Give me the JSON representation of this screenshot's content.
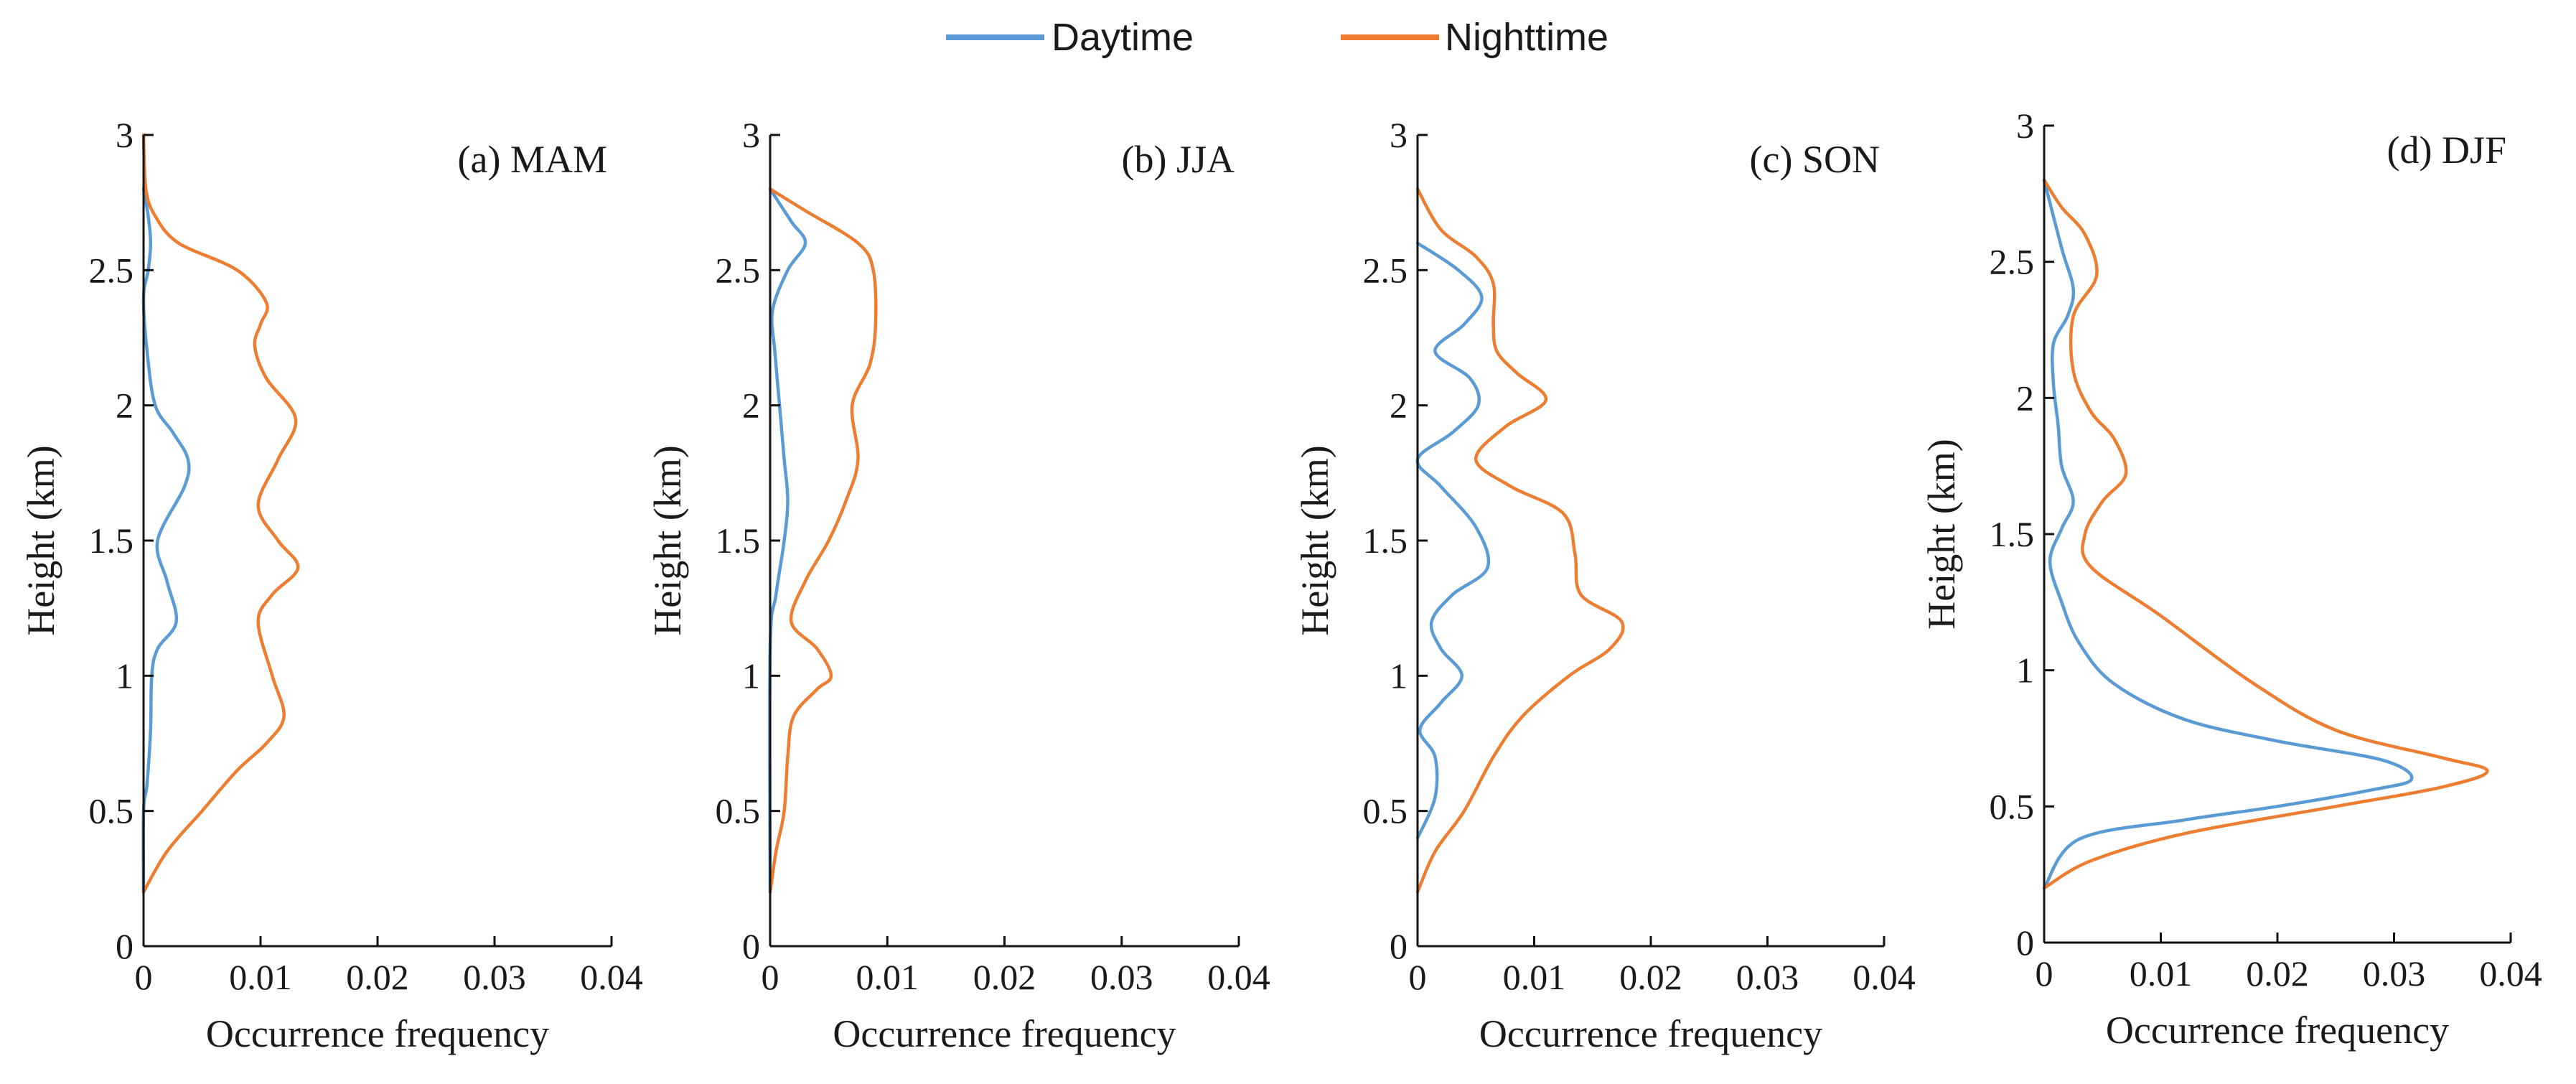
{
  "legend": {
    "items": [
      {
        "label": "Daytime",
        "color": "#5B9BD5"
      },
      {
        "label": "Nighttime",
        "color": "#ED7D31"
      }
    ]
  },
  "chart_data": [
    {
      "type": "line",
      "orientation": "vertical-profile",
      "title": "(a) MAM",
      "xlabel": "Occurrence frequency",
      "ylabel": "Height (km)",
      "xlim": [
        0,
        0.04
      ],
      "ylim": [
        0,
        3
      ],
      "xticks": [
        0,
        0.01,
        0.02,
        0.03,
        0.04
      ],
      "xtick_labels": [
        "0",
        "0.01",
        "0.02",
        "0.03",
        "0.04"
      ],
      "yticks": [
        0,
        0.5,
        1,
        1.5,
        2,
        2.5,
        3
      ],
      "ytick_labels": [
        "0",
        "0.5",
        "1",
        "1.5",
        "2",
        "2.5",
        "3"
      ],
      "series": [
        {
          "name": "Daytime",
          "points": [
            [
              0,
              0.2
            ],
            [
              0,
              0.5
            ],
            [
              0.0003,
              0.6
            ],
            [
              0.0006,
              0.8
            ],
            [
              0.0007,
              1.0
            ],
            [
              0.0012,
              1.1
            ],
            [
              0.0028,
              1.2
            ],
            [
              0.002,
              1.35
            ],
            [
              0.0012,
              1.5
            ],
            [
              0.0035,
              1.7
            ],
            [
              0.0038,
              1.8
            ],
            [
              0.0025,
              1.9
            ],
            [
              0.001,
              2.0
            ],
            [
              0.0003,
              2.2
            ],
            [
              0,
              2.4
            ],
            [
              0.0004,
              2.5
            ],
            [
              0.0006,
              2.6
            ],
            [
              0.0004,
              2.7
            ],
            [
              0,
              2.8
            ]
          ]
        },
        {
          "name": "Nighttime",
          "points": [
            [
              0,
              0.2
            ],
            [
              0.002,
              0.35
            ],
            [
              0.005,
              0.5
            ],
            [
              0.008,
              0.65
            ],
            [
              0.0105,
              0.75
            ],
            [
              0.012,
              0.85
            ],
            [
              0.011,
              1.0
            ],
            [
              0.0098,
              1.2
            ],
            [
              0.011,
              1.3
            ],
            [
              0.0132,
              1.4
            ],
            [
              0.0115,
              1.5
            ],
            [
              0.0098,
              1.63
            ],
            [
              0.0115,
              1.8
            ],
            [
              0.013,
              1.95
            ],
            [
              0.0105,
              2.1
            ],
            [
              0.0095,
              2.22
            ],
            [
              0.01,
              2.3
            ],
            [
              0.0105,
              2.38
            ],
            [
              0.008,
              2.5
            ],
            [
              0.003,
              2.6
            ],
            [
              0.001,
              2.7
            ],
            [
              0.0002,
              2.8
            ],
            [
              0,
              3.0
            ]
          ]
        }
      ]
    },
    {
      "type": "line",
      "orientation": "vertical-profile",
      "title": "(b) JJA",
      "xlabel": "Occurrence frequency",
      "ylabel": "Height (km)",
      "xlim": [
        0,
        0.04
      ],
      "ylim": [
        0,
        3
      ],
      "xticks": [
        0,
        0.01,
        0.02,
        0.03,
        0.04
      ],
      "xtick_labels": [
        "0",
        "0.01",
        "0.02",
        "0.03",
        "0.04"
      ],
      "yticks": [
        0,
        0.5,
        1,
        1.5,
        2,
        2.5,
        3
      ],
      "ytick_labels": [
        "0",
        "0.5",
        "1",
        "1.5",
        "2",
        "2.5",
        "3"
      ],
      "series": [
        {
          "name": "Daytime",
          "points": [
            [
              0,
              0.2
            ],
            [
              0,
              1.1
            ],
            [
              0.0005,
              1.3
            ],
            [
              0.0012,
              1.5
            ],
            [
              0.0015,
              1.65
            ],
            [
              0.0012,
              1.8
            ],
            [
              0.0008,
              2.0
            ],
            [
              0.0004,
              2.2
            ],
            [
              0.0002,
              2.35
            ],
            [
              0.0015,
              2.5
            ],
            [
              0.003,
              2.6
            ],
            [
              0.0018,
              2.68
            ],
            [
              0,
              2.8
            ]
          ]
        },
        {
          "name": "Nighttime",
          "points": [
            [
              0,
              0.2
            ],
            [
              0.0005,
              0.35
            ],
            [
              0.0012,
              0.5
            ],
            [
              0.0015,
              0.7
            ],
            [
              0.002,
              0.85
            ],
            [
              0.004,
              0.95
            ],
            [
              0.0052,
              1.0
            ],
            [
              0.004,
              1.1
            ],
            [
              0.0018,
              1.2
            ],
            [
              0.003,
              1.35
            ],
            [
              0.005,
              1.5
            ],
            [
              0.0065,
              1.65
            ],
            [
              0.0075,
              1.8
            ],
            [
              0.007,
              2.0
            ],
            [
              0.0085,
              2.15
            ],
            [
              0.009,
              2.3
            ],
            [
              0.0088,
              2.5
            ],
            [
              0.0075,
              2.6
            ],
            [
              0.003,
              2.72
            ],
            [
              0,
              2.8
            ]
          ]
        }
      ]
    },
    {
      "type": "line",
      "orientation": "vertical-profile",
      "title": "(c) SON",
      "xlabel": "Occurrence frequency",
      "ylabel": "Height (km)",
      "xlim": [
        0,
        0.04
      ],
      "ylim": [
        0,
        3
      ],
      "xticks": [
        0,
        0.01,
        0.02,
        0.03,
        0.04
      ],
      "xtick_labels": [
        "0",
        "0.01",
        "0.02",
        "0.03",
        "0.04"
      ],
      "yticks": [
        0,
        0.5,
        1,
        1.5,
        2,
        2.5,
        3
      ],
      "ytick_labels": [
        "0",
        "0.5",
        "1",
        "1.5",
        "2",
        "2.5",
        "3"
      ],
      "series": [
        {
          "name": "Daytime",
          "points": [
            [
              0,
              0.4
            ],
            [
              0.0015,
              0.55
            ],
            [
              0.0015,
              0.7
            ],
            [
              0.0002,
              0.8
            ],
            [
              0.002,
              0.9
            ],
            [
              0.0038,
              1.0
            ],
            [
              0.002,
              1.1
            ],
            [
              0.0012,
              1.2
            ],
            [
              0.003,
              1.3
            ],
            [
              0.006,
              1.4
            ],
            [
              0.005,
              1.55
            ],
            [
              0.002,
              1.7
            ],
            [
              0,
              1.8
            ],
            [
              0.003,
              1.9
            ],
            [
              0.0052,
              2.0
            ],
            [
              0.0045,
              2.1
            ],
            [
              0.0015,
              2.2
            ],
            [
              0.004,
              2.3
            ],
            [
              0.0055,
              2.4
            ],
            [
              0.0035,
              2.5
            ],
            [
              0,
              2.6
            ]
          ]
        },
        {
          "name": "Nighttime",
          "points": [
            [
              0,
              0.2
            ],
            [
              0.0015,
              0.35
            ],
            [
              0.004,
              0.5
            ],
            [
              0.0065,
              0.7
            ],
            [
              0.009,
              0.85
            ],
            [
              0.013,
              1.0
            ],
            [
              0.0165,
              1.1
            ],
            [
              0.0175,
              1.2
            ],
            [
              0.014,
              1.3
            ],
            [
              0.0135,
              1.45
            ],
            [
              0.0125,
              1.6
            ],
            [
              0.008,
              1.7
            ],
            [
              0.005,
              1.8
            ],
            [
              0.0075,
              1.92
            ],
            [
              0.011,
              2.02
            ],
            [
              0.0085,
              2.12
            ],
            [
              0.0068,
              2.2
            ],
            [
              0.0065,
              2.3
            ],
            [
              0.0065,
              2.45
            ],
            [
              0.005,
              2.55
            ],
            [
              0.002,
              2.65
            ],
            [
              0,
              2.8
            ]
          ]
        }
      ]
    },
    {
      "type": "line",
      "orientation": "vertical-profile",
      "title": "(d) DJF",
      "xlabel": "Occurrence frequency",
      "ylabel": "Height (km)",
      "xlim": [
        0,
        0.04
      ],
      "ylim": [
        0,
        3
      ],
      "xticks": [
        0,
        0.01,
        0.02,
        0.03,
        0.04
      ],
      "xtick_labels": [
        "0",
        "0.01",
        "0.02",
        "0.03",
        "0.04"
      ],
      "yticks": [
        0,
        0.5,
        1,
        1.5,
        2,
        2.5,
        3
      ],
      "ytick_labels": [
        "0",
        "0.5",
        "1",
        "1.5",
        "2",
        "2.5",
        "3"
      ],
      "series": [
        {
          "name": "Daytime",
          "points": [
            [
              0,
              0.2
            ],
            [
              0.003,
              0.38
            ],
            [
              0.012,
              0.45
            ],
            [
              0.02,
              0.5
            ],
            [
              0.028,
              0.56
            ],
            [
              0.0315,
              0.6
            ],
            [
              0.029,
              0.67
            ],
            [
              0.02,
              0.74
            ],
            [
              0.012,
              0.82
            ],
            [
              0.006,
              0.95
            ],
            [
              0.003,
              1.1
            ],
            [
              0.0015,
              1.25
            ],
            [
              0.0005,
              1.4
            ],
            [
              0.0015,
              1.52
            ],
            [
              0.0025,
              1.62
            ],
            [
              0.0015,
              1.75
            ],
            [
              0.0012,
              1.9
            ],
            [
              0.0008,
              2.05
            ],
            [
              0.0008,
              2.2
            ],
            [
              0.002,
              2.3
            ],
            [
              0.0025,
              2.4
            ],
            [
              0.0015,
              2.55
            ],
            [
              0,
              2.8
            ]
          ]
        },
        {
          "name": "Nighttime",
          "points": [
            [
              0,
              0.2
            ],
            [
              0.004,
              0.3
            ],
            [
              0.012,
              0.4
            ],
            [
              0.025,
              0.5
            ],
            [
              0.034,
              0.57
            ],
            [
              0.038,
              0.63
            ],
            [
              0.034,
              0.68
            ],
            [
              0.025,
              0.78
            ],
            [
              0.018,
              0.95
            ],
            [
              0.01,
              1.2
            ],
            [
              0.004,
              1.38
            ],
            [
              0.0035,
              1.5
            ],
            [
              0.005,
              1.62
            ],
            [
              0.007,
              1.72
            ],
            [
              0.006,
              1.85
            ],
            [
              0.004,
              1.95
            ],
            [
              0.0025,
              2.1
            ],
            [
              0.0025,
              2.3
            ],
            [
              0.0045,
              2.45
            ],
            [
              0.0035,
              2.6
            ],
            [
              0.0015,
              2.7
            ],
            [
              0,
              2.8
            ]
          ]
        }
      ]
    }
  ]
}
